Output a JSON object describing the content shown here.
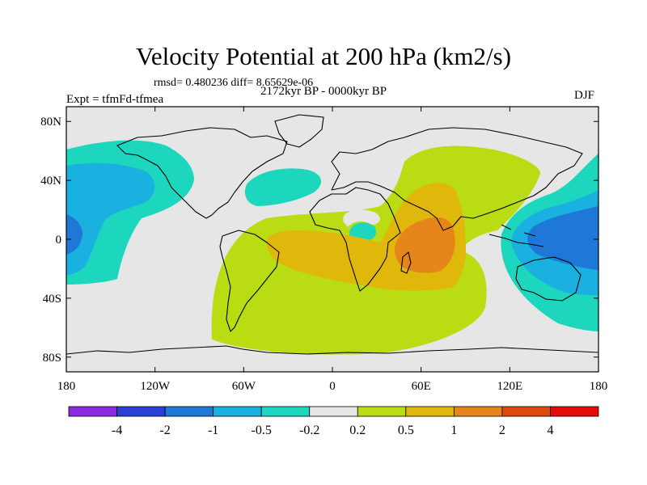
{
  "title": "Velocity Potential at 200 hPa (km2/s)",
  "stats": "rmsd= 0.480236 diff= 8.65629e-06",
  "period": "2172kyr BP - 0000kyr BP",
  "experiment": "Expt = tfmFd-tfmea",
  "season": "DJF",
  "map": {
    "projection": "cylindrical-equidistant",
    "lon_range": [
      -180,
      180
    ],
    "lat_range": [
      -90,
      90
    ],
    "lon_ticks": [
      {
        "value": -180,
        "label": "180"
      },
      {
        "value": -120,
        "label": "120W"
      },
      {
        "value": -60,
        "label": "60W"
      },
      {
        "value": 0,
        "label": "0"
      },
      {
        "value": 60,
        "label": "60E"
      },
      {
        "value": 120,
        "label": "120E"
      },
      {
        "value": 180,
        "label": "180"
      }
    ],
    "lat_ticks": [
      {
        "value": 80,
        "label": "80N"
      },
      {
        "value": 40,
        "label": "40N"
      },
      {
        "value": 0,
        "label": "0"
      },
      {
        "value": -40,
        "label": "40S"
      },
      {
        "value": -80,
        "label": "80S"
      }
    ]
  },
  "colorbar": {
    "levels": [
      "-4",
      "-2",
      "-1",
      "-0.5",
      "-0.2",
      "0.2",
      "0.5",
      "1",
      "2",
      "4"
    ],
    "colors": [
      "#8a2be2",
      "#2b3fd6",
      "#1f78d8",
      "#1ab0e0",
      "#1cd6bd",
      "#e6e6e6",
      "#b9dc12",
      "#e0b80c",
      "#e6861a",
      "#e0480e",
      "#e60c0c"
    ]
  },
  "chart_data": {
    "type": "contour-map",
    "variable": "Velocity Potential at 200 hPa",
    "units": "km2/s",
    "levels": [
      -4,
      -2,
      -1,
      -0.5,
      -0.2,
      0.2,
      0.5,
      1,
      2,
      4
    ],
    "features": [
      {
        "name": "north-pacific-negative",
        "center_lonlat": [
          -150,
          30
        ],
        "extreme_bin": "-1 to -0.5"
      },
      {
        "name": "central-pacific-negative",
        "center_lonlat": [
          -178,
          2
        ],
        "extreme_bin": "-2 to -1"
      },
      {
        "name": "west-pacific-negative",
        "center_lonlat": [
          155,
          0
        ],
        "extreme_bin": "-2 to -1"
      },
      {
        "name": "north-atlantic-negative",
        "center_lonlat": [
          -35,
          35
        ],
        "extreme_bin": "-0.5 to -0.2"
      },
      {
        "name": "africa-indian-ocean-positive",
        "center_lonlat": [
          50,
          -5
        ],
        "extreme_bin": "1 to 2"
      },
      {
        "name": "south-atlantic-positive",
        "center_lonlat": [
          -25,
          -10
        ],
        "extreme_bin": "0.5 to 1"
      }
    ]
  }
}
